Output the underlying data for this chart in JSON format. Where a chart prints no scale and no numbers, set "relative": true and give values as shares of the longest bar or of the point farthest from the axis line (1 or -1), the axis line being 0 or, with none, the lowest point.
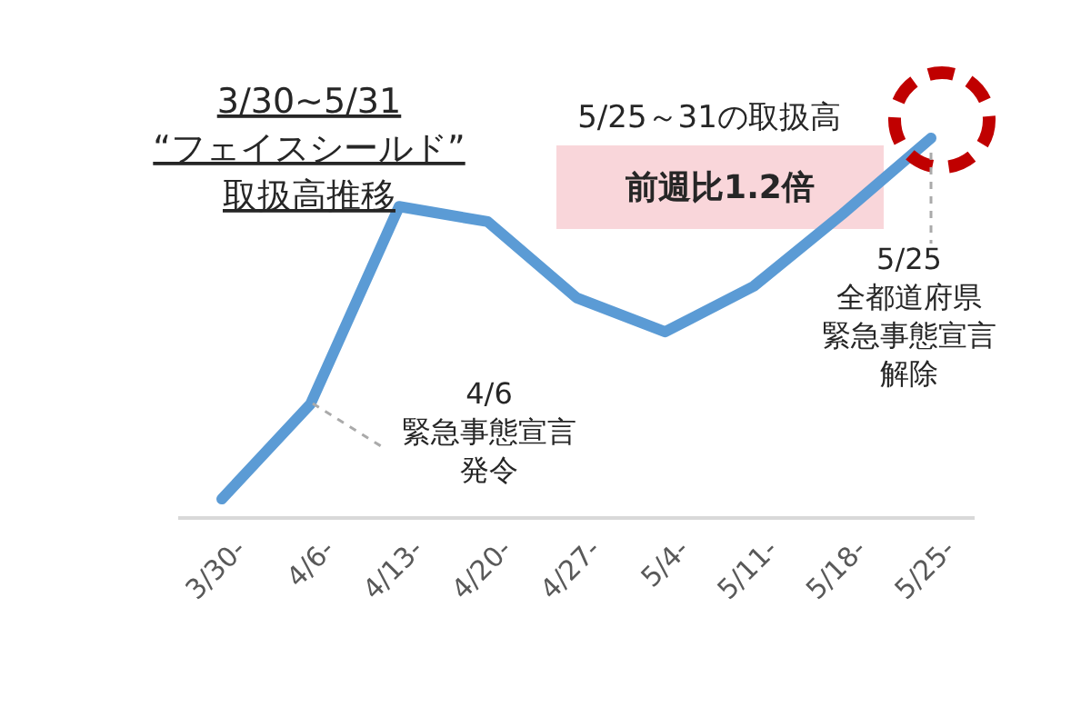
{
  "chart_data": {
    "type": "line",
    "relative": true,
    "title": "3/30~5/31\n“フェイスシールド”\n取扱高推移",
    "categories": [
      "3/30-",
      "4/6-",
      "4/13-",
      "4/20-",
      "4/27-",
      "5/4-",
      "5/11-",
      "5/18-",
      "5/25-"
    ],
    "series": [
      {
        "color": "#5b9bd5",
        "values": [
          0.05,
          0.3,
          0.82,
          0.78,
          0.58,
          0.49,
          0.61,
          0.8,
          1
        ]
      }
    ],
    "marker": "none",
    "line_style": "solid",
    "annotations": [
      "5/25～31の取扱高",
      "前週比1.2倍",
      "4/6",
      "緊急事態宣言",
      "発令",
      {
        "text": "5/25",
        "x": "5/25-",
        "y": 1
      },
      "全都道府県",
      "緊急事態宣言",
      "解除"
    ]
  }
}
